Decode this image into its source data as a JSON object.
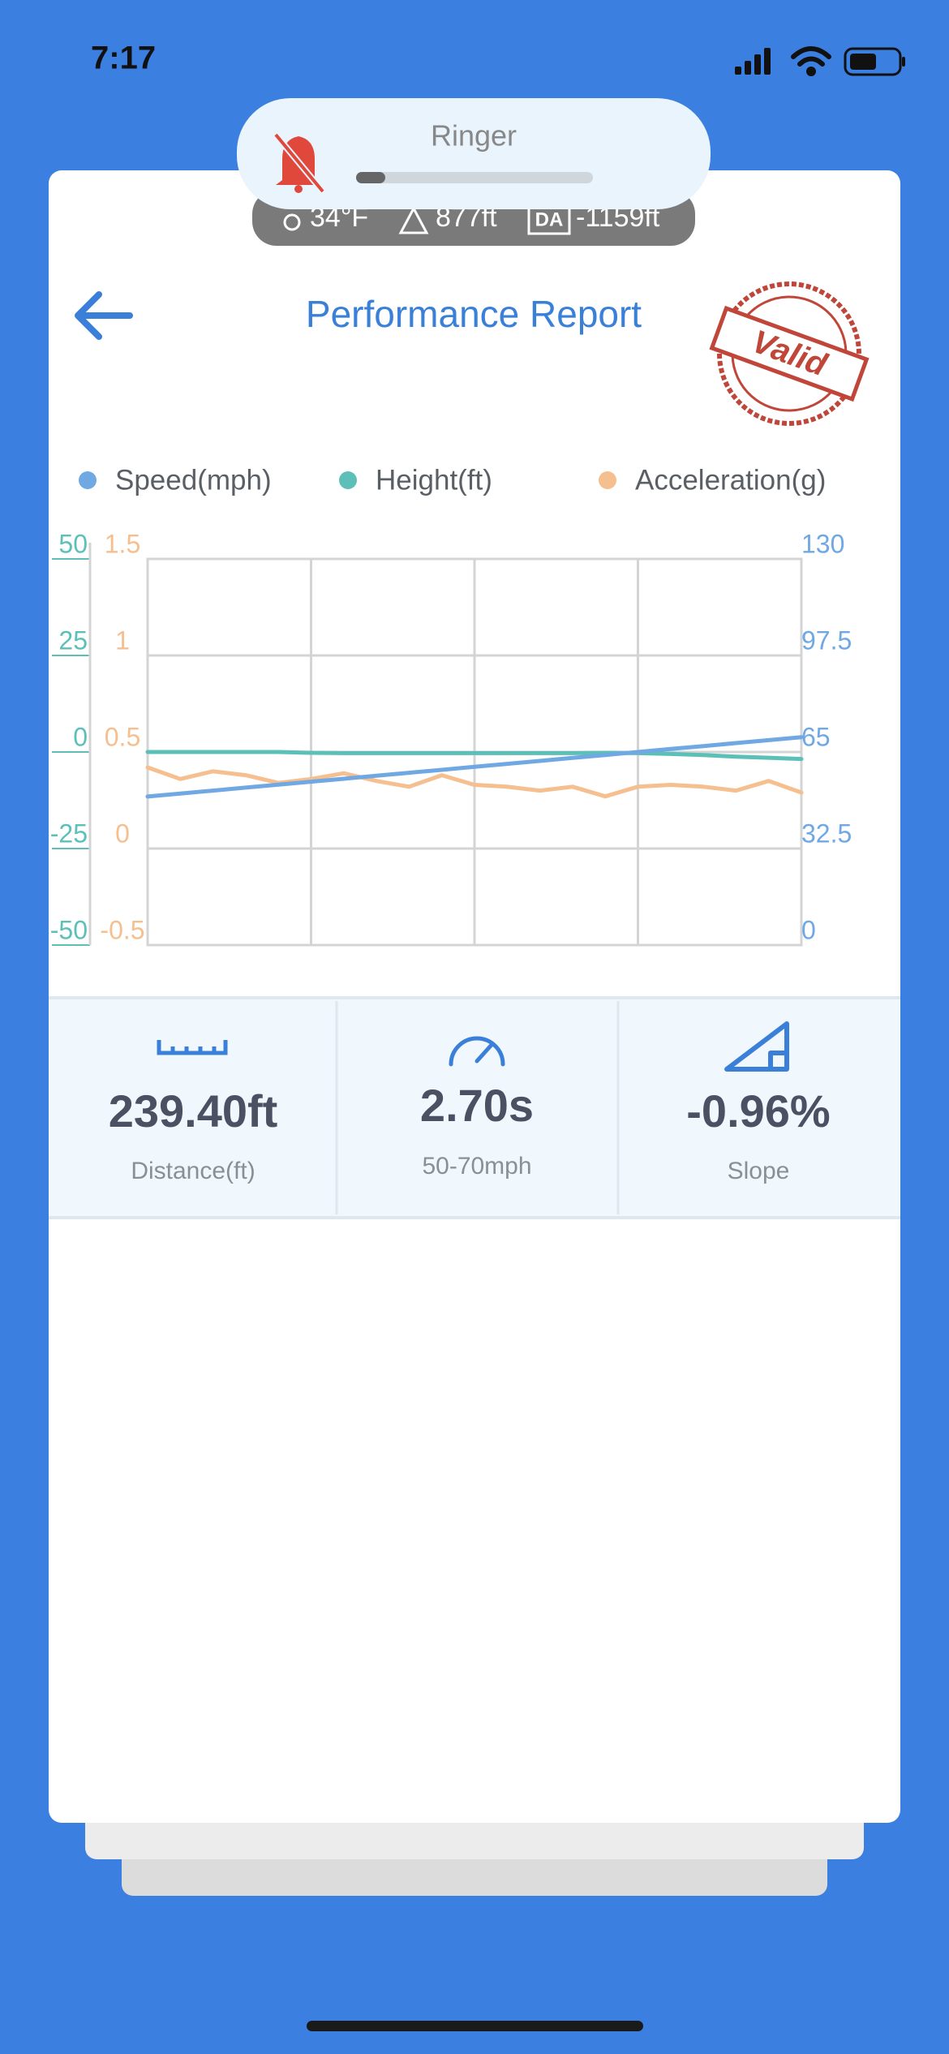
{
  "status_bar": {
    "time": "7:17"
  },
  "ringer": {
    "label": "Ringer"
  },
  "conditions": {
    "temperature": "34°F",
    "altitude": "877ft",
    "density_altitude_label": "DA",
    "density_altitude": "-1159ft"
  },
  "header": {
    "title": "Performance Report",
    "stamp": "Valid"
  },
  "chart_data": {
    "type": "line",
    "series": [
      {
        "name": "Speed(mph)",
        "color": "#6fa8e3",
        "axis": "y2",
        "values": [
          50,
          51,
          52,
          53,
          54,
          55,
          56,
          57,
          58,
          59,
          60,
          61,
          62,
          63,
          64,
          65,
          66,
          67,
          68,
          69,
          70
        ]
      },
      {
        "name": "Height(ft)",
        "color": "#5cc0b8",
        "axis": "y",
        "values": [
          0,
          0,
          0,
          0,
          0,
          -0.2,
          -0.3,
          -0.3,
          -0.3,
          -0.3,
          -0.3,
          -0.3,
          -0.3,
          -0.3,
          -0.2,
          -0.3,
          -0.5,
          -0.8,
          -1.2,
          -1.5,
          -1.8
        ]
      },
      {
        "name": "Acceleration(g)",
        "color": "#f5bf8f",
        "axis": "y3",
        "values": [
          0.42,
          0.36,
          0.4,
          0.38,
          0.34,
          0.36,
          0.39,
          0.35,
          0.32,
          0.38,
          0.33,
          0.32,
          0.3,
          0.32,
          0.27,
          0.32,
          0.33,
          0.32,
          0.3,
          0.35,
          0.29
        ]
      }
    ],
    "ylim": [
      -50,
      50
    ],
    "yticks": [
      -50,
      -25,
      0,
      25,
      50
    ],
    "y2lim": [
      0,
      130
    ],
    "y2ticks": [
      0,
      32.5,
      65,
      97.5,
      130
    ],
    "y3lim": [
      -0.5,
      1.5
    ],
    "y3ticks": [
      -0.5,
      0,
      0.5,
      1,
      1.5
    ],
    "grid": true
  },
  "stats": [
    {
      "value": "239.40ft",
      "label": "Distance(ft)"
    },
    {
      "value": "2.70s",
      "label": "50-70mph"
    },
    {
      "value": "-0.96%",
      "label": "Slope"
    }
  ]
}
